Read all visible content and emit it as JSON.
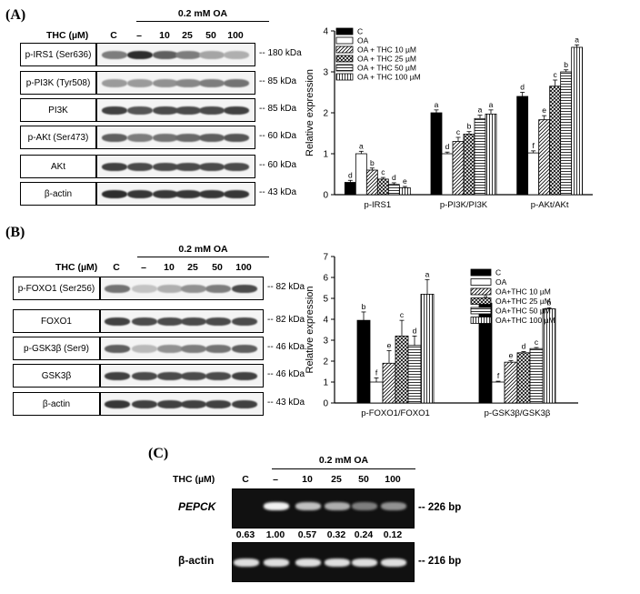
{
  "panels": {
    "A": {
      "label": "(A)",
      "thc_label": "THC (µM)",
      "oa_label": "0.2 mM OA",
      "lanes": [
        "C",
        "–",
        "10",
        "25",
        "50",
        "100"
      ],
      "blots": [
        {
          "name": "p-IRS1 (Ser636)",
          "kda": "-- 180 kDa"
        },
        {
          "name": "p-PI3K (Tyr508)",
          "kda": "-- 85 kDa"
        },
        {
          "name": "PI3K",
          "kda": "-- 85 kDa"
        },
        {
          "name": "p-AKt (Ser473)",
          "kda": "-- 60 kDa"
        },
        {
          "name": "AKt",
          "kda": "-- 60 kDa"
        },
        {
          "name": "β-actin",
          "kda": "-- 43 kDa"
        }
      ]
    },
    "B": {
      "label": "(B)",
      "thc_label": "THC (µM)",
      "oa_label": "0.2 mM OA",
      "lanes": [
        "C",
        "–",
        "10",
        "25",
        "50",
        "100"
      ],
      "blots": [
        {
          "name": "p-FOXO1 (Ser256)",
          "kda": "-- 82 kDa"
        },
        {
          "name": "FOXO1",
          "kda": "-- 82 kDa"
        },
        {
          "name": "p-GSK3β (Ser9)",
          "kda": "-- 46 kDa"
        },
        {
          "name": "GSK3β",
          "kda": "-- 46 kDa"
        },
        {
          "name": "β-actin",
          "kda": "-- 43 kDa"
        }
      ]
    },
    "C": {
      "label": "(C)",
      "thc_label": "THC (µM)",
      "oa_label": "0.2 mM OA",
      "lanes": [
        "C",
        "–",
        "10",
        "25",
        "50",
        "100"
      ],
      "gels": [
        {
          "name": "PEPCK",
          "bp": "-- 226 bp"
        },
        {
          "name": "β-actin",
          "bp": "-- 216 bp"
        }
      ],
      "values": [
        "0.63",
        "1.00",
        "0.57",
        "0.32",
        "0.24",
        "0.12"
      ]
    }
  },
  "chart_data": [
    {
      "type": "bar",
      "ylabel": "Relative expression",
      "ylim": [
        0,
        4
      ],
      "yticks": [
        "0",
        "1",
        "2",
        "3",
        "4"
      ],
      "categories": [
        "p-IRS1",
        "p-PI3K/PI3K",
        "p-AKt/AKt"
      ],
      "legend": "top-left",
      "series": [
        {
          "name": "C",
          "values": [
            0.3,
            2.0,
            2.4
          ],
          "errors": [
            0.05,
            0.07,
            0.1
          ],
          "letters": [
            "d",
            "a",
            "d"
          ]
        },
        {
          "name": "OA",
          "values": [
            1.0,
            1.0,
            1.02
          ],
          "errors": [
            0.06,
            0.04,
            0.05
          ],
          "letters": [
            "a",
            "d",
            "f"
          ]
        },
        {
          "name": "OA + THC 10 µM",
          "values": [
            0.6,
            1.3,
            1.83
          ],
          "errors": [
            0.05,
            0.1,
            0.1
          ],
          "letters": [
            "b",
            "c",
            "e"
          ]
        },
        {
          "name": "OA + THC 25 µM",
          "values": [
            0.38,
            1.48,
            2.65
          ],
          "errors": [
            0.04,
            0.06,
            0.15
          ],
          "letters": [
            "c",
            "b",
            "c"
          ]
        },
        {
          "name": "OA + THC 50 µM",
          "values": [
            0.25,
            1.86,
            3.0
          ],
          "errors": [
            0.04,
            0.08,
            0.05
          ],
          "letters": [
            "d",
            "a",
            "b"
          ]
        },
        {
          "name": "OA + THC 100 µM",
          "values": [
            0.17,
            1.97,
            3.6
          ],
          "errors": [
            0.03,
            0.1,
            0.06
          ],
          "letters": [
            "e",
            "a",
            "a"
          ]
        }
      ]
    },
    {
      "type": "bar",
      "ylabel": "Relative expression",
      "ylim": [
        0,
        7
      ],
      "yticks": [
        "0",
        "1",
        "2",
        "3",
        "4",
        "5",
        "6",
        "7"
      ],
      "categories": [
        "p-FOXO1/FOXO1",
        "p-GSK3β/GSK3β"
      ],
      "legend": "top-right",
      "series": [
        {
          "name": "C",
          "values": [
            3.95,
            4.77
          ],
          "errors": [
            0.4,
            0.05
          ],
          "letters": [
            "b",
            "a"
          ]
        },
        {
          "name": "OA",
          "values": [
            1.0,
            1.0
          ],
          "errors": [
            0.2,
            0.04
          ],
          "letters": [
            "f",
            "f"
          ]
        },
        {
          "name": "OA+THC 10 µM",
          "values": [
            1.9,
            1.95
          ],
          "errors": [
            0.6,
            0.08
          ],
          "letters": [
            "e",
            "e"
          ]
        },
        {
          "name": "OA+THC 25 µM",
          "values": [
            3.2,
            2.4
          ],
          "errors": [
            0.75,
            0.06
          ],
          "letters": [
            "c",
            "d"
          ]
        },
        {
          "name": "OA+THC 50 µM",
          "values": [
            2.75,
            2.6
          ],
          "errors": [
            0.45,
            0.05
          ],
          "letters": [
            "d",
            "c"
          ]
        },
        {
          "name": "OA+THC 100 µM",
          "values": [
            5.2,
            4.5
          ],
          "errors": [
            0.7,
            0.05
          ],
          "letters": [
            "a",
            "b"
          ]
        }
      ]
    }
  ]
}
